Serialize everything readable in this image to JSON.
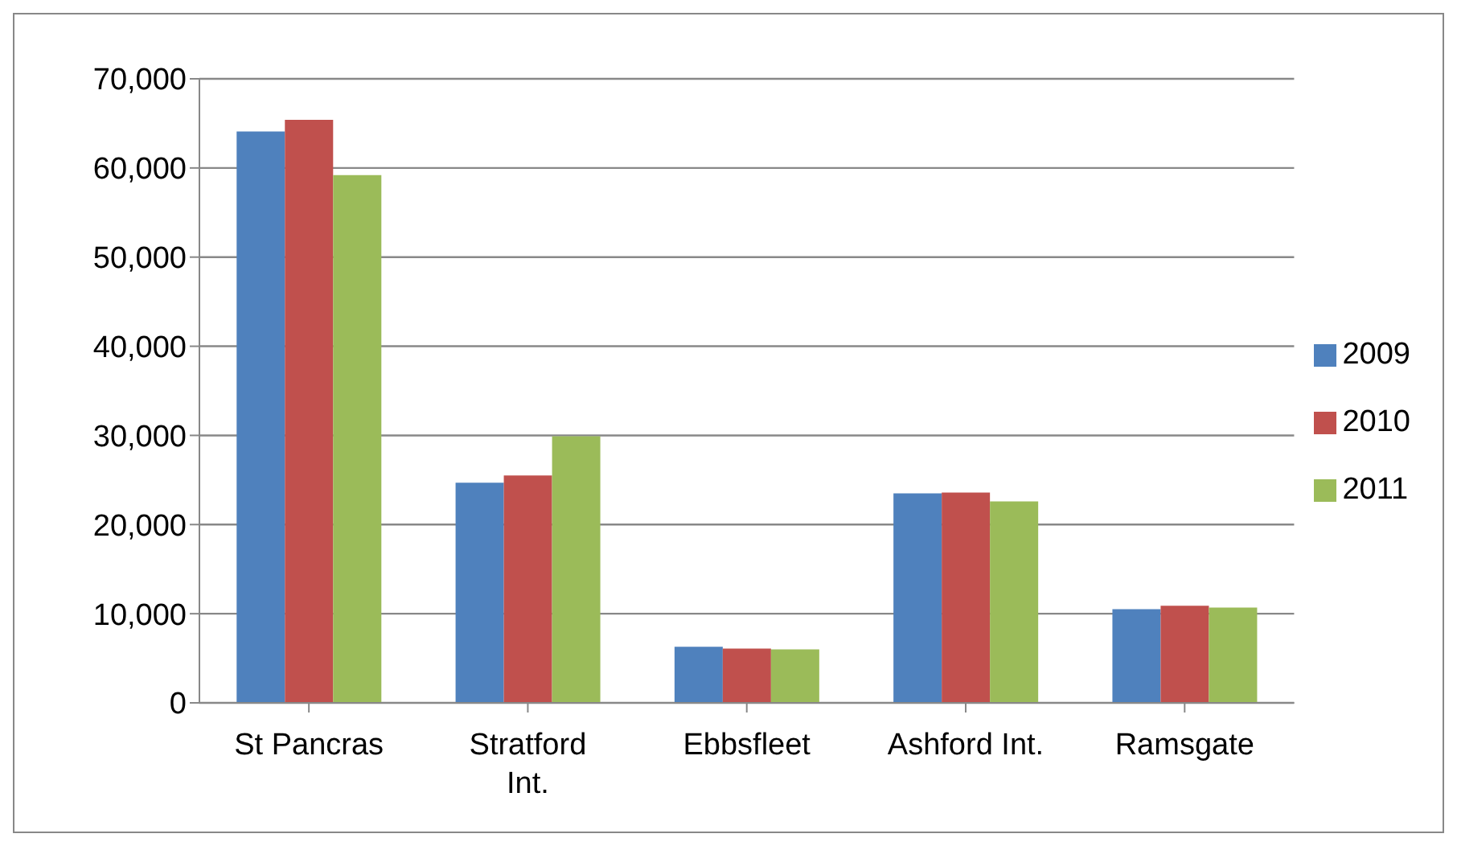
{
  "chart_data": {
    "type": "bar",
    "categories": [
      "St Pancras",
      "Stratford Int.",
      "Ebbsfleet",
      "Ashford Int.",
      "Ramsgate"
    ],
    "series": [
      {
        "name": "2009",
        "color": "#4f81bd",
        "values": [
          64100,
          24700,
          6300,
          23500,
          10500
        ]
      },
      {
        "name": "2010",
        "color": "#c0504d",
        "values": [
          65400,
          25500,
          6100,
          23600,
          10900
        ]
      },
      {
        "name": "2011",
        "color": "#9bbb59",
        "values": [
          59200,
          29900,
          6000,
          22600,
          10700
        ]
      }
    ],
    "ylim": [
      0,
      70000
    ],
    "yticks": [
      {
        "value": 0,
        "label": "0"
      },
      {
        "value": 10000,
        "label": "10,000"
      },
      {
        "value": 20000,
        "label": "20,000"
      },
      {
        "value": 30000,
        "label": "30,000"
      },
      {
        "value": 40000,
        "label": "40,000"
      },
      {
        "value": 50000,
        "label": "50,000"
      },
      {
        "value": 60000,
        "label": "60,000"
      },
      {
        "value": 70000,
        "label": "70,000"
      }
    ],
    "grid": "y",
    "legend": "right"
  }
}
